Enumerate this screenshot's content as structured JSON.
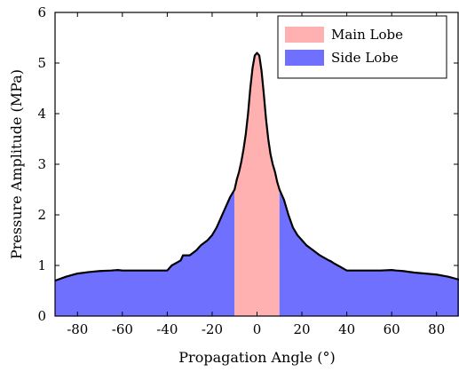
{
  "chart_data": {
    "type": "area",
    "title": "",
    "xlabel": "Propagation Angle (°)",
    "ylabel": "Pressure Amplitude (MPa)",
    "xlim": [
      -90,
      90
    ],
    "ylim": [
      0,
      6
    ],
    "xticks": [
      -80,
      -60,
      -40,
      -20,
      0,
      20,
      40,
      60,
      80
    ],
    "yticks": [
      0,
      1,
      2,
      3,
      4,
      5,
      6
    ],
    "grid": false,
    "legend_position": "top-right",
    "main_lobe_range": [
      -10,
      10
    ],
    "series": [
      {
        "name": "Main Lobe",
        "color": "#ffb0b0"
      },
      {
        "name": "Side Lobe",
        "color": "#7070ff"
      }
    ],
    "curve_color": "#000000",
    "curve": {
      "x": [
        -90,
        -85,
        -80,
        -75,
        -70,
        -65,
        -62,
        -60,
        -55,
        -50,
        -45,
        -40,
        -38,
        -36,
        -34,
        -33,
        -32,
        -30,
        -27,
        -25,
        -22,
        -20,
        -18,
        -16,
        -14,
        -12,
        -10,
        -9,
        -8,
        -7,
        -6,
        -5,
        -4,
        -3,
        -2,
        -1,
        0,
        1,
        2,
        3,
        4,
        5,
        6,
        7,
        8,
        9,
        10,
        12,
        14,
        16,
        18,
        20,
        22,
        25,
        28,
        30,
        32,
        33,
        34,
        36,
        38,
        40,
        45,
        50,
        55,
        60,
        62,
        65,
        70,
        75,
        80,
        85,
        90
      ],
      "y": [
        0.7,
        0.78,
        0.84,
        0.87,
        0.89,
        0.9,
        0.91,
        0.9,
        0.9,
        0.9,
        0.9,
        0.9,
        1.0,
        1.05,
        1.1,
        1.2,
        1.2,
        1.2,
        1.3,
        1.4,
        1.5,
        1.6,
        1.75,
        1.95,
        2.15,
        2.35,
        2.5,
        2.7,
        2.85,
        3.05,
        3.3,
        3.6,
        4.0,
        4.5,
        4.9,
        5.15,
        5.2,
        5.15,
        4.85,
        4.4,
        3.9,
        3.5,
        3.2,
        3.0,
        2.85,
        2.65,
        2.5,
        2.3,
        2.0,
        1.75,
        1.6,
        1.5,
        1.4,
        1.3,
        1.2,
        1.15,
        1.1,
        1.08,
        1.05,
        1.0,
        0.95,
        0.9,
        0.9,
        0.9,
        0.9,
        0.91,
        0.9,
        0.89,
        0.86,
        0.84,
        0.82,
        0.78,
        0.72
      ]
    }
  }
}
